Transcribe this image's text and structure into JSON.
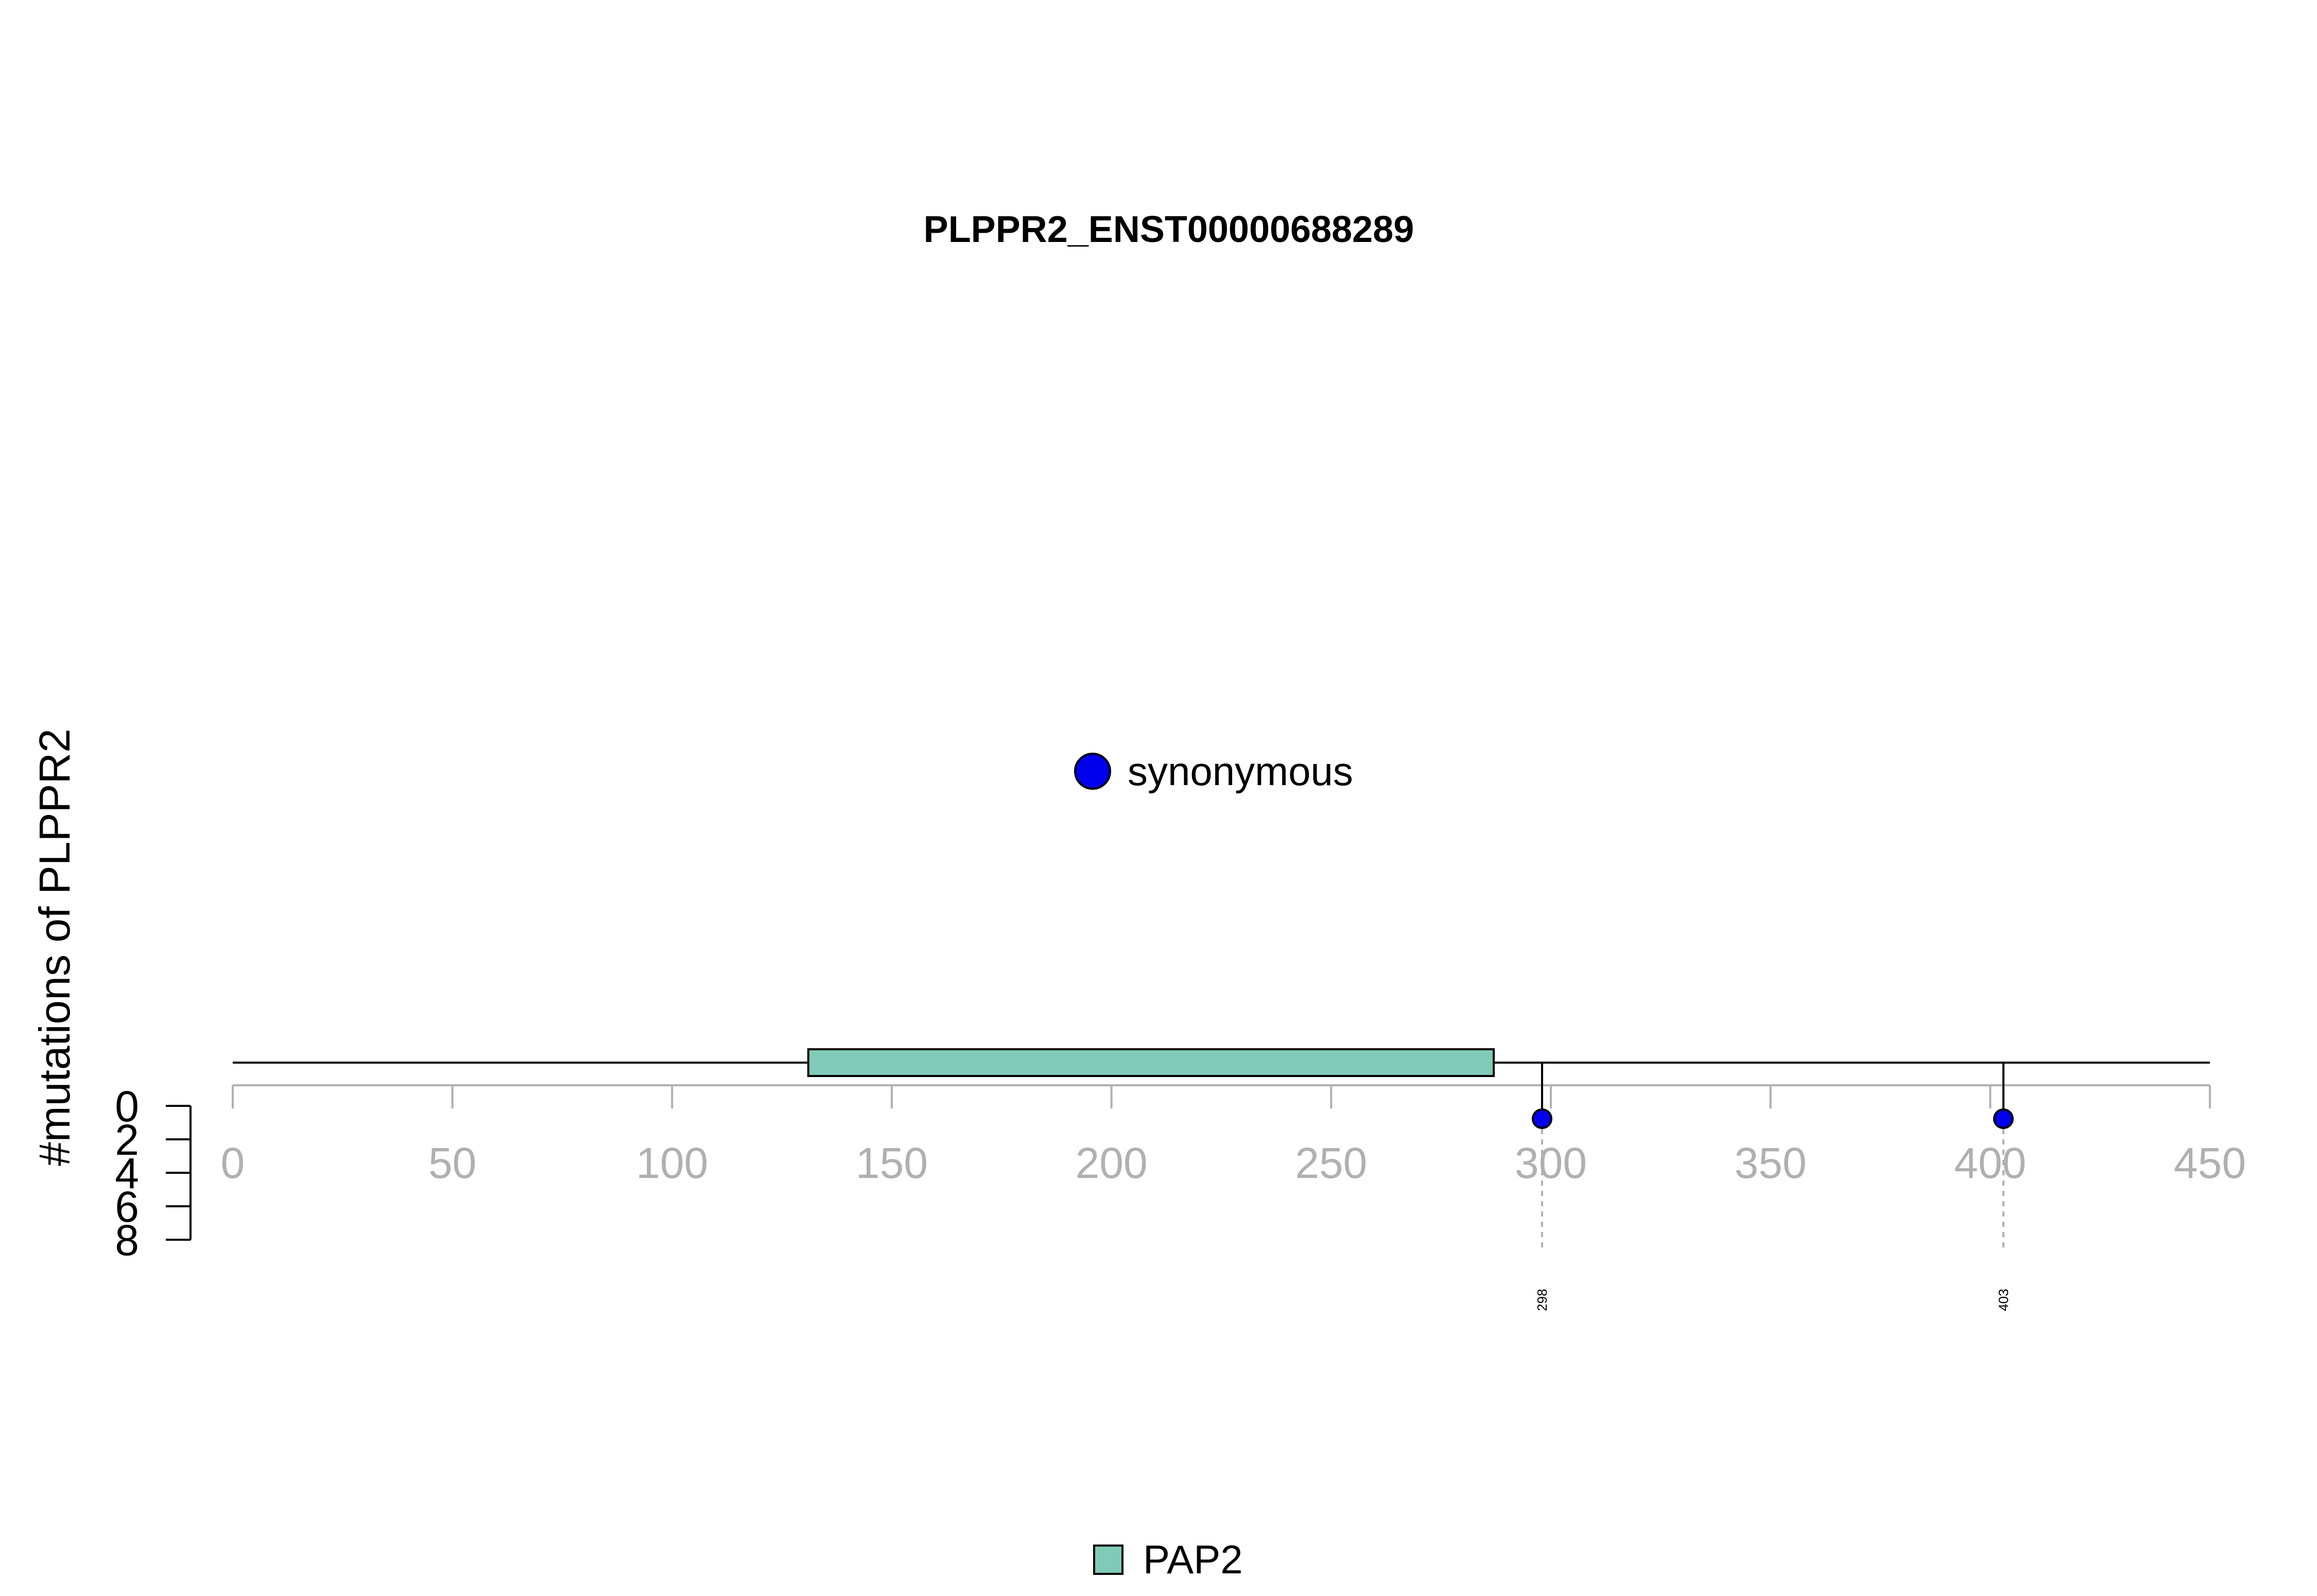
{
  "chart_data": {
    "type": "lollipop",
    "title": "PLPPR2_ENST00000688289",
    "xlabel": "",
    "ylabel": "#mutations of PLPPR2",
    "xlim": [
      0,
      450
    ],
    "x_ticks": [
      0,
      50,
      100,
      150,
      200,
      250,
      300,
      350,
      400,
      450
    ],
    "y_ticks": [
      0,
      2,
      4,
      6,
      8
    ],
    "ylim": [
      0,
      8
    ],
    "protein_length": 450,
    "domains": [
      {
        "name": "PAP2",
        "start": 131,
        "end": 287,
        "color": "#7fcbb8"
      }
    ],
    "mutations": [
      {
        "position": 298,
        "count": 1,
        "type": "synonymous",
        "label": "298",
        "color": "#0000ee"
      },
      {
        "position": 403,
        "count": 1,
        "type": "synonymous",
        "label": "403",
        "color": "#0000ee"
      }
    ],
    "mutation_legend": [
      {
        "label": "synonymous",
        "color": "#0000ee"
      }
    ],
    "domain_legend": [
      {
        "label": "PAP2",
        "color": "#7fcbb8"
      }
    ],
    "grid": false
  }
}
